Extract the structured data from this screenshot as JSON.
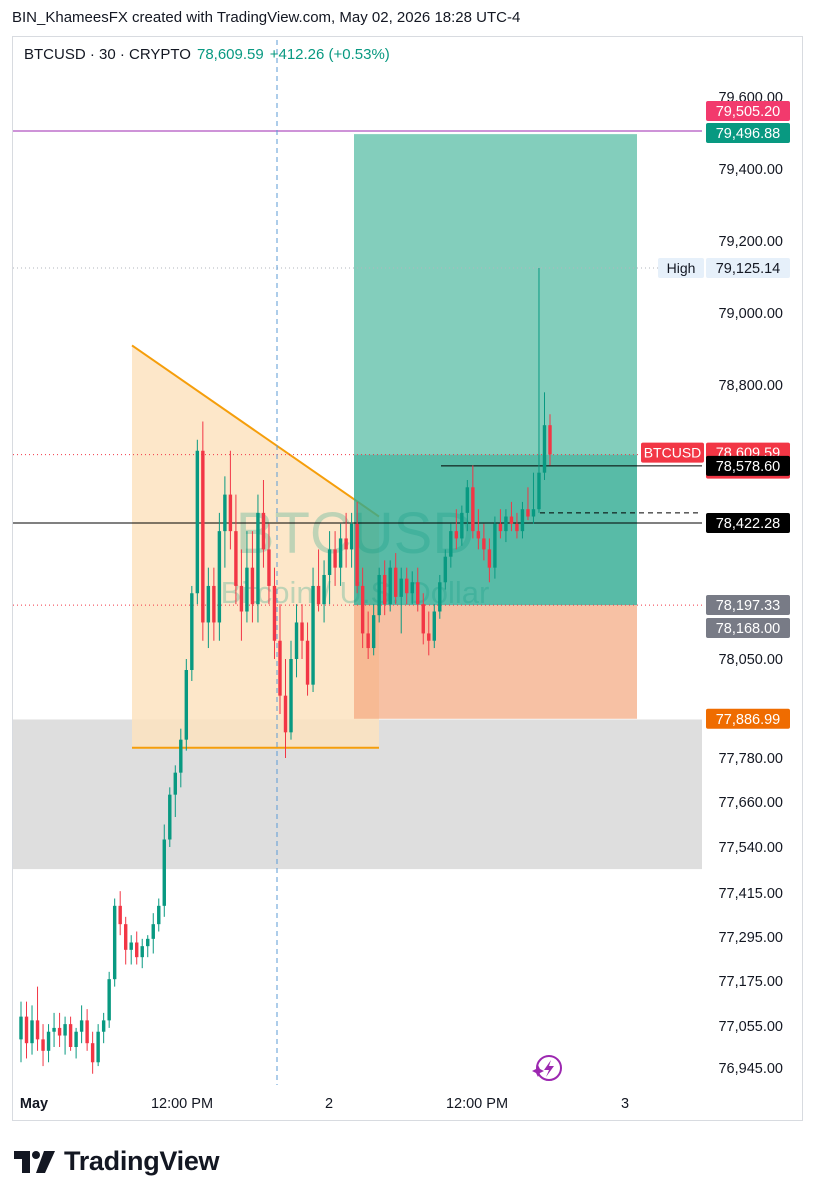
{
  "header": {
    "text": "BIN_KhameesFX created with TradingView.com, May 02, 2026 18:28 UTC-4"
  },
  "legend": {
    "symbol": "BTCUSD · 30 · CRYPTO",
    "price": "78,609.59",
    "change": "+412.26 (+0.53%)"
  },
  "watermark": {
    "symbol": "BTCUSD",
    "name": "Bitcoin / U.S. Dollar"
  },
  "branding": {
    "logo_text": "TradingView"
  },
  "chart_data": {
    "type": "candlestick",
    "symbol": "BTCUSD",
    "interval": "30",
    "exchange": "CRYPTO",
    "last_price": 78609.59,
    "change": 412.26,
    "change_percent": 0.53,
    "y_tick_labels": [
      "79,600.00",
      "79,400.00",
      "79,200.00",
      "79,000.00",
      "78,800.00",
      "78,050.00",
      "77,780.00",
      "77,660.00",
      "77,540.00",
      "77,415.00",
      "77,295.00",
      "77,175.00",
      "77,055.00",
      "76,945.00"
    ],
    "x_tick_labels": [
      "May",
      "12:00 PM",
      "2",
      "12:00 PM",
      "3"
    ],
    "price_labels": [
      {
        "text": "79,505.20",
        "color": "#f23a6d",
        "text_color": "#ffffff"
      },
      {
        "text": "79,496.88",
        "color": "#089981",
        "text_color": "#ffffff"
      },
      {
        "text": "79,125.14",
        "tag": "High",
        "color": "#e6f0fa",
        "text_color": "#131722"
      },
      {
        "text": "78,609.59",
        "sub": "01:38",
        "tag": "BTCUSD",
        "color": "#f23645",
        "text_color": "#ffffff"
      },
      {
        "text": "78,578.60",
        "color": "#000000",
        "text_color": "#ffffff"
      },
      {
        "text": "78,422.28",
        "color": "#000000",
        "text_color": "#ffffff"
      },
      {
        "text": "78,197.33",
        "color": "#787b86",
        "text_color": "#ffffff"
      },
      {
        "text": "78,168.00",
        "color": "#787b86",
        "text_color": "#ffffff"
      },
      {
        "text": "77,886.99",
        "color": "#ef6c00",
        "text_color": "#ffffff"
      }
    ],
    "position": {
      "entry": 78197.33,
      "target": 79496.88,
      "stop": 77886.99
    },
    "triangle": {
      "upper_start": 78910,
      "upper_end": 78440,
      "lower": 77808
    },
    "zone": {
      "top": 77885,
      "bottom": 77480
    },
    "candles": [
      [
        77020,
        77120,
        76960,
        77080
      ],
      [
        77080,
        77120,
        76970,
        77010
      ],
      [
        77010,
        77110,
        76980,
        77070
      ],
      [
        77070,
        77160,
        76990,
        77020
      ],
      [
        77020,
        77060,
        76950,
        76990
      ],
      [
        76990,
        77060,
        76960,
        77040
      ],
      [
        77040,
        77090,
        77000,
        77050
      ],
      [
        77050,
        77090,
        77000,
        77030
      ],
      [
        77030,
        77080,
        76980,
        77060
      ],
      [
        77060,
        77080,
        76990,
        77000
      ],
      [
        77000,
        77050,
        76970,
        77040
      ],
      [
        77040,
        77110,
        77010,
        77070
      ],
      [
        77070,
        77100,
        76990,
        77010
      ],
      [
        77010,
        77040,
        76930,
        76960
      ],
      [
        76960,
        77060,
        76950,
        77040
      ],
      [
        77040,
        77090,
        77010,
        77070
      ],
      [
        77070,
        77200,
        77050,
        77180
      ],
      [
        77180,
        77400,
        77160,
        77380
      ],
      [
        77380,
        77420,
        77300,
        77330
      ],
      [
        77330,
        77350,
        77220,
        77260
      ],
      [
        77260,
        77300,
        77220,
        77280
      ],
      [
        77280,
        77310,
        77220,
        77240
      ],
      [
        77240,
        77290,
        77210,
        77270
      ],
      [
        77270,
        77300,
        77240,
        77290
      ],
      [
        77290,
        77360,
        77250,
        77330
      ],
      [
        77330,
        77400,
        77310,
        77380
      ],
      [
        77380,
        77600,
        77350,
        77560
      ],
      [
        77560,
        77700,
        77540,
        77680
      ],
      [
        77680,
        77760,
        77620,
        77740
      ],
      [
        77740,
        77860,
        77700,
        77830
      ],
      [
        77830,
        78050,
        77800,
        78020
      ],
      [
        78020,
        78250,
        77990,
        78230
      ],
      [
        78230,
        78650,
        78200,
        78620
      ],
      [
        78620,
        78700,
        78100,
        78150
      ],
      [
        78150,
        78300,
        78080,
        78250
      ],
      [
        78250,
        78300,
        78100,
        78150
      ],
      [
        78150,
        78450,
        78100,
        78400
      ],
      [
        78400,
        78550,
        78300,
        78500
      ],
      [
        78500,
        78620,
        78350,
        78400
      ],
      [
        78400,
        78500,
        78200,
        78250
      ],
      [
        78250,
        78350,
        78100,
        78180
      ],
      [
        78180,
        78400,
        78150,
        78300
      ],
      [
        78300,
        78400,
        78150,
        78200
      ],
      [
        78200,
        78500,
        78150,
        78450
      ],
      [
        78450,
        78540,
        78300,
        78350
      ],
      [
        78350,
        78420,
        78200,
        78250
      ],
      [
        78250,
        78300,
        78050,
        78100
      ],
      [
        78100,
        78200,
        77900,
        77950
      ],
      [
        77950,
        78050,
        77780,
        77850
      ],
      [
        77850,
        78100,
        77830,
        78050
      ],
      [
        78050,
        78200,
        78000,
        78150
      ],
      [
        78150,
        78200,
        78050,
        78100
      ],
      [
        78100,
        78150,
        77950,
        77980
      ],
      [
        77980,
        78300,
        77960,
        78250
      ],
      [
        78250,
        78350,
        78180,
        78200
      ],
      [
        78200,
        78320,
        78150,
        78280
      ],
      [
        78280,
        78400,
        78200,
        78350
      ],
      [
        78350,
        78400,
        78250,
        78300
      ],
      [
        78300,
        78420,
        78250,
        78380
      ],
      [
        78380,
        78450,
        78300,
        78350
      ],
      [
        78350,
        78450,
        78300,
        78420
      ],
      [
        78420,
        78480,
        78230,
        78250
      ],
      [
        78250,
        78300,
        78080,
        78120
      ],
      [
        78120,
        78180,
        78050,
        78080
      ],
      [
        78080,
        78200,
        78060,
        78170
      ],
      [
        78170,
        78300,
        78150,
        78280
      ],
      [
        78280,
        78320,
        78170,
        78200
      ],
      [
        78200,
        78320,
        78180,
        78300
      ],
      [
        78300,
        78340,
        78200,
        78220
      ],
      [
        78220,
        78300,
        78120,
        78270
      ],
      [
        78270,
        78300,
        78200,
        78230
      ],
      [
        78230,
        78290,
        78200,
        78260
      ],
      [
        78260,
        78300,
        78180,
        78200
      ],
      [
        78200,
        78230,
        78090,
        78120
      ],
      [
        78120,
        78180,
        78060,
        78100
      ],
      [
        78100,
        78200,
        78080,
        78180
      ],
      [
        78180,
        78280,
        78160,
        78260
      ],
      [
        78260,
        78350,
        78240,
        78330
      ],
      [
        78330,
        78420,
        78300,
        78400
      ],
      [
        78400,
        78460,
        78350,
        78380
      ],
      [
        78380,
        78470,
        78360,
        78450
      ],
      [
        78450,
        78540,
        78400,
        78520
      ],
      [
        78520,
        78580,
        78380,
        78400
      ],
      [
        78400,
        78460,
        78350,
        78380
      ],
      [
        78380,
        78420,
        78320,
        78350
      ],
      [
        78350,
        78380,
        78260,
        78300
      ],
      [
        78300,
        78440,
        78270,
        78420
      ],
      [
        78420,
        78460,
        78380,
        78400
      ],
      [
        78400,
        78460,
        78370,
        78440
      ],
      [
        78440,
        78480,
        78400,
        78420
      ],
      [
        78420,
        78450,
        78380,
        78400
      ],
      [
        78400,
        78480,
        78380,
        78460
      ],
      [
        78460,
        78520,
        78430,
        78440
      ],
      [
        78440,
        78560,
        78420,
        78460
      ],
      [
        78460,
        79125,
        78450,
        78560
      ],
      [
        78560,
        78780,
        78540,
        78690
      ],
      [
        78690,
        78720,
        78580,
        78610
      ]
    ]
  }
}
